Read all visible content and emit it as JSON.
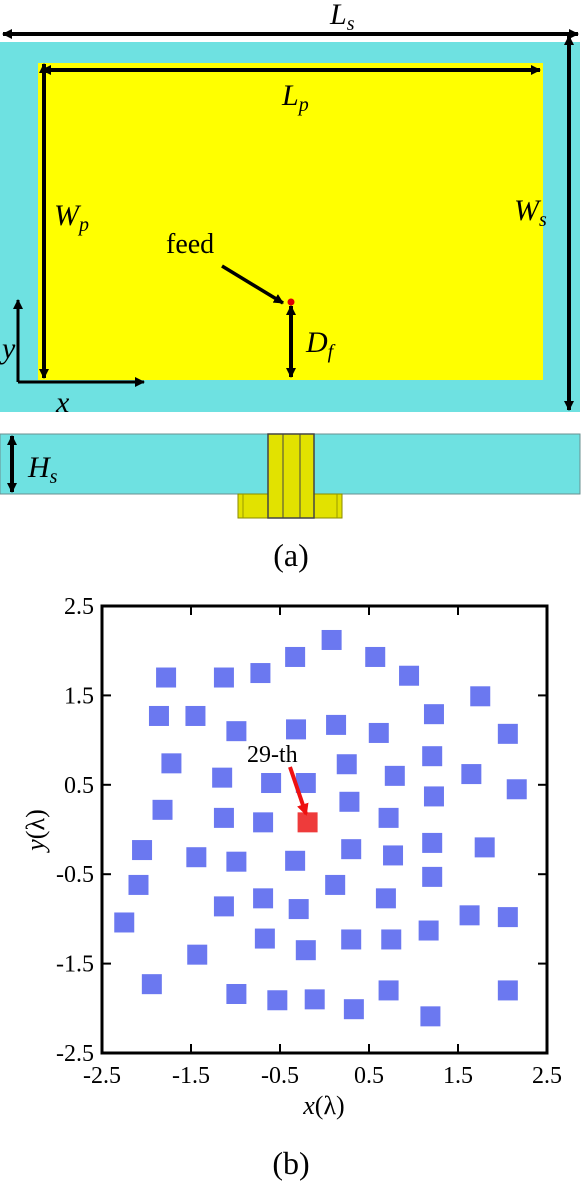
{
  "figure_a": {
    "labels": {
      "ls_main": "L",
      "ls_sub": "s",
      "lp_main": "L",
      "lp_sub": "p",
      "wp_main": "W",
      "wp_sub": "p",
      "ws_main": "W",
      "ws_sub": "s",
      "df_main": "D",
      "df_sub": "f",
      "hs_main": "H",
      "hs_sub": "s",
      "feed": "feed",
      "y_axis": "y",
      "x_axis": "x"
    },
    "caption": "(a)",
    "colors": {
      "substrate": "#6ee1e1",
      "patch": "#ffff00",
      "feed_dot": "#e00000",
      "probe": "#e2e200"
    }
  },
  "figure_b": {
    "caption": "(b)",
    "annotation": "29-th",
    "colors": {
      "element": "#6b78f0",
      "highlight": "#ee3b3b",
      "arrow": "#ee1111"
    }
  },
  "chart_data": {
    "type": "scatter",
    "title": "",
    "xlabel_main": "x",
    "xlabel_unit": "(λ)",
    "ylabel_main": "y",
    "ylabel_unit": "(λ)",
    "xlim": [
      -2.5,
      2.5
    ],
    "ylim": [
      -2.5,
      2.5
    ],
    "xticks": [
      "-2.5",
      "-1.5",
      "-0.5",
      "0.5",
      "1.5",
      "2.5"
    ],
    "yticks": [
      "2.5",
      "1.5",
      "0.5",
      "-0.5",
      "-1.5",
      "-2.5"
    ],
    "grid": false,
    "highlight_index": 28,
    "points": [
      [
        0.08,
        2.12
      ],
      [
        -0.33,
        1.93
      ],
      [
        0.57,
        1.93
      ],
      [
        -0.72,
        1.75
      ],
      [
        -1.13,
        1.7
      ],
      [
        -1.78,
        1.7
      ],
      [
        0.95,
        1.72
      ],
      [
        1.75,
        1.49
      ],
      [
        -1.86,
        1.27
      ],
      [
        -1.45,
        1.27
      ],
      [
        1.23,
        1.29
      ],
      [
        -0.99,
        1.1
      ],
      [
        -0.32,
        1.12
      ],
      [
        0.13,
        1.17
      ],
      [
        0.61,
        1.08
      ],
      [
        2.06,
        1.07
      ],
      [
        -1.72,
        0.74
      ],
      [
        -1.15,
        0.58
      ],
      [
        1.21,
        0.82
      ],
      [
        0.25,
        0.73
      ],
      [
        1.65,
        0.62
      ],
      [
        0.79,
        0.6
      ],
      [
        -0.6,
        0.52
      ],
      [
        -0.21,
        0.52
      ],
      [
        2.16,
        0.45
      ],
      [
        1.23,
        0.37
      ],
      [
        -1.82,
        0.22
      ],
      [
        -1.13,
        0.13
      ],
      [
        -0.19,
        0.08
      ],
      [
        -0.69,
        0.08
      ],
      [
        0.28,
        0.31
      ],
      [
        0.72,
        0.13
      ],
      [
        -2.05,
        -0.23
      ],
      [
        1.21,
        -0.15
      ],
      [
        -1.44,
        -0.31
      ],
      [
        -0.99,
        -0.36
      ],
      [
        -0.33,
        -0.35
      ],
      [
        0.3,
        -0.22
      ],
      [
        0.77,
        -0.29
      ],
      [
        1.8,
        -0.2
      ],
      [
        -2.09,
        -0.62
      ],
      [
        1.21,
        -0.53
      ],
      [
        0.12,
        -0.62
      ],
      [
        -0.69,
        -0.77
      ],
      [
        0.69,
        -0.77
      ],
      [
        -1.13,
        -0.86
      ],
      [
        -0.29,
        -0.89
      ],
      [
        2.06,
        -0.98
      ],
      [
        1.63,
        -0.96
      ],
      [
        -2.25,
        -1.04
      ],
      [
        1.17,
        -1.13
      ],
      [
        -0.67,
        -1.22
      ],
      [
        0.3,
        -1.23
      ],
      [
        0.75,
        -1.23
      ],
      [
        -0.21,
        -1.35
      ],
      [
        -1.43,
        -1.4
      ],
      [
        -1.94,
        -1.73
      ],
      [
        -0.99,
        -1.84
      ],
      [
        -0.53,
        -1.91
      ],
      [
        -0.11,
        -1.9
      ],
      [
        0.33,
        -2.01
      ],
      [
        0.72,
        -1.8
      ],
      [
        1.19,
        -2.09
      ],
      [
        2.06,
        -1.8
      ]
    ]
  }
}
